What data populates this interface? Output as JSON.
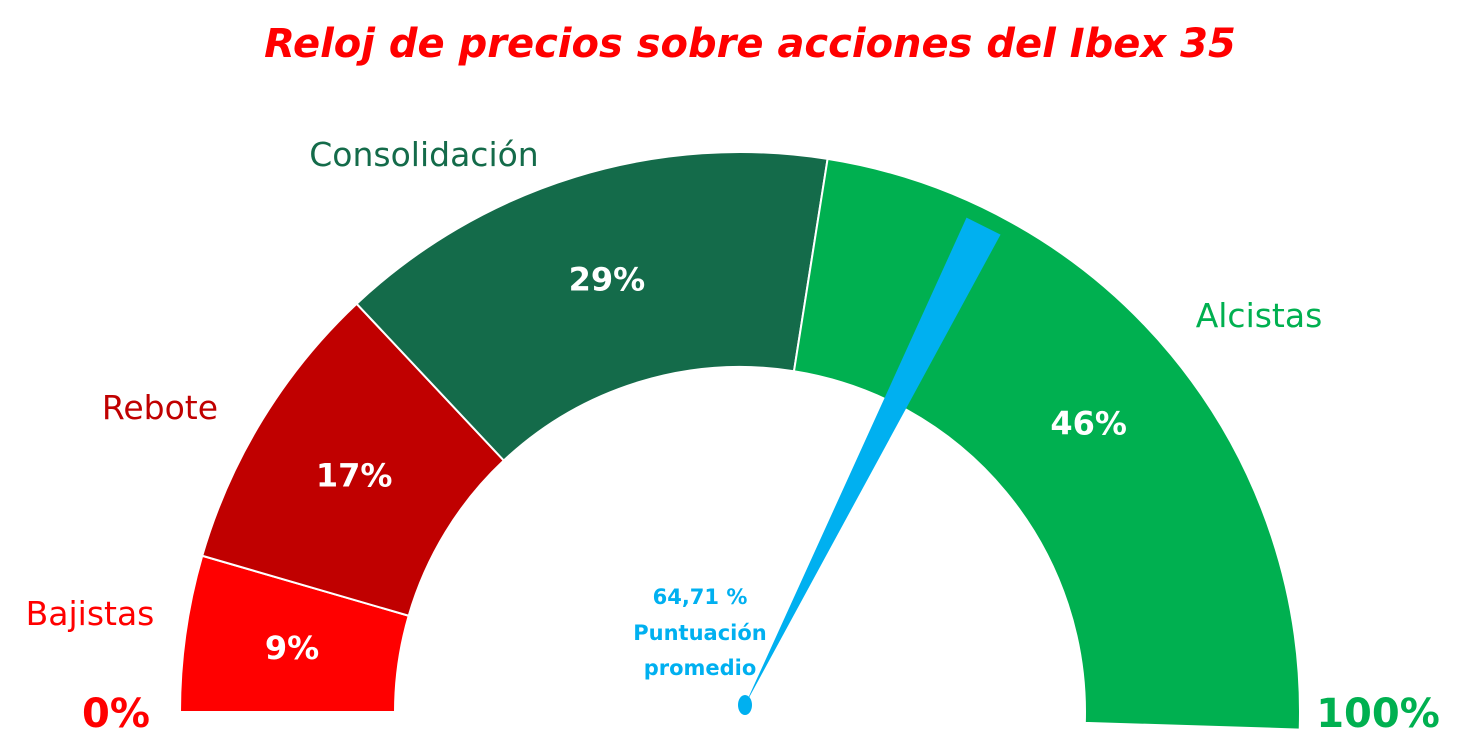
{
  "title": "Reloj de precios sobre acciones del Ibex 35",
  "colors": {
    "title": "#ff0000",
    "needle": "#00b0f0",
    "bajistas": "#ff0000",
    "rebote": "#c00000",
    "consolidacion": "#146b4a",
    "alcistas": "#00b050"
  },
  "chart_data": {
    "type": "gauge",
    "title": "Reloj de precios sobre acciones del Ibex 35",
    "range": [
      0,
      100
    ],
    "min_label": "0%",
    "max_label": "100%",
    "bands": [
      {
        "name": "Bajistas",
        "value": 9,
        "label": "9%",
        "color": "#ff0000",
        "name_color": "#ff0000"
      },
      {
        "name": "Rebote",
        "value": 17,
        "label": "17%",
        "color": "#c00000",
        "name_color": "#c00000"
      },
      {
        "name": "Consolidación",
        "value": 29,
        "label": "29%",
        "color": "#146b4a",
        "name_color": "#146b4a"
      },
      {
        "name": "Alcistas",
        "value": 46,
        "label": "46%",
        "color": "#00b050",
        "name_color": "#00b050"
      }
    ],
    "needle": {
      "value": 64.71,
      "value_label": "64,71 %",
      "caption_line1": "Puntuación",
      "caption_line2": "promedio",
      "color": "#00b0f0"
    }
  }
}
